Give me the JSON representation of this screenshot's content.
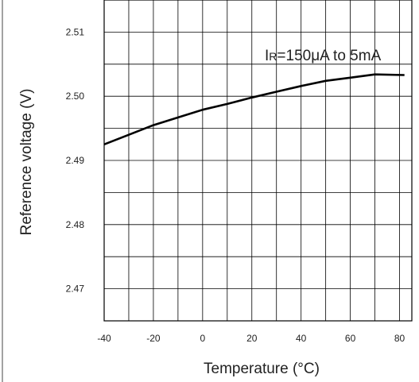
{
  "chart_data": {
    "type": "line",
    "xlabel": "Temperature (°C)",
    "ylabel": "Reference voltage (V)",
    "xlim": [
      -40,
      85
    ],
    "ylim": [
      2.465,
      2.515
    ],
    "x_ticks": [
      "-40",
      "-20",
      "0",
      "20",
      "40",
      "60",
      "80"
    ],
    "y_ticks": [
      "2.51",
      "2.50",
      "2.49",
      "2.48",
      "2.47"
    ],
    "grid": true,
    "annotation": {
      "prefix": "I",
      "subscript": "R",
      "suffix": "=150μA to 5mA"
    },
    "series": [
      {
        "x": [
          -40,
          -30,
          -20,
          -10,
          0,
          10,
          20,
          30,
          40,
          50,
          60,
          70,
          82
        ],
        "y": [
          2.4925,
          2.494,
          2.4955,
          2.4967,
          2.4979,
          2.4988,
          2.4998,
          2.5007,
          2.5016,
          2.5024,
          2.5029,
          2.5034,
          2.5033
        ]
      }
    ]
  }
}
